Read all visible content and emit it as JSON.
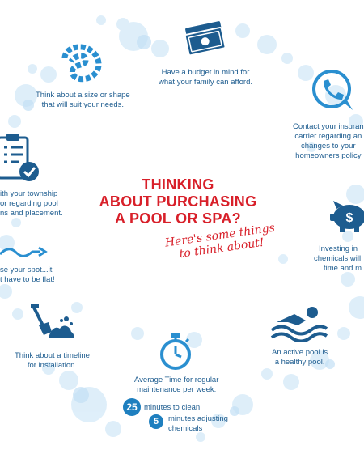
{
  "heading": {
    "lines": [
      "THINKING",
      "ABOUT PURCHASING",
      "A POOL OR SPA?"
    ],
    "script_lines": [
      "Here's some things",
      "to think about!"
    ]
  },
  "tips": {
    "budget": [
      "Have a budget in mind for",
      "what your family can afford."
    ],
    "shape": [
      "Think about a size or shape",
      "that will suit your needs."
    ],
    "insurance": [
      "Contact your insuran",
      "carrier regarding an",
      "changes to your",
      "homeowners policy"
    ],
    "township": [
      "ith your township",
      "or regarding pool",
      "ns and placement."
    ],
    "chemicals": [
      "Investing in",
      "chemicals will",
      "time and m"
    ],
    "spot": [
      "se your spot...it",
      "t have to be flat!"
    ],
    "active": [
      "An active pool is",
      "a healthy pool."
    ],
    "timeline": [
      "Think about a timeline",
      "for installation."
    ],
    "maintenance": {
      "lines": [
        "Average Time for regular",
        "maintenance per week:"
      ],
      "clean_number": "25",
      "clean_text": "minutes to clean",
      "chem_number": "5",
      "chem_text": [
        "minutes adjusting",
        "chemicals"
      ]
    }
  },
  "colors": {
    "icon_blue": "#1d5c8f",
    "accent_blue": "#2a8fd0",
    "title_red": "#d8202a",
    "bubble": "#d7ebf8"
  },
  "icons": [
    "money-icon",
    "ring-shape-icon",
    "phone-chat-icon",
    "clipboard-check-icon",
    "piggy-bank-icon",
    "wave-line-icon",
    "swimmer-icon",
    "shovel-dirt-icon",
    "stopwatch-icon"
  ]
}
